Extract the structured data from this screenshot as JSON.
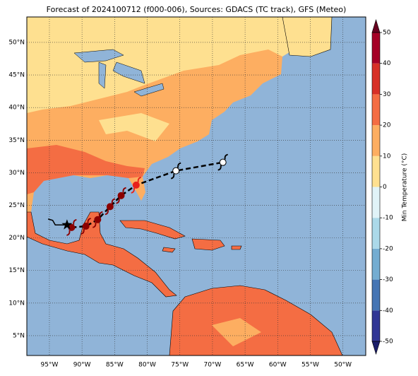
{
  "chart_data": {
    "type": "map",
    "title": "Forecast of 2024100712 (f000-006), Sources: GDACS (TC track), GFS (Meteo)",
    "xlim": [
      -98.46,
      -46.5
    ],
    "ylim": [
      1.96,
      53.9
    ],
    "xticks": [
      {
        "value": -95,
        "label": "95°W"
      },
      {
        "value": -90,
        "label": "90°W"
      },
      {
        "value": -85,
        "label": "85°W"
      },
      {
        "value": -80,
        "label": "80°W"
      },
      {
        "value": -75,
        "label": "75°W"
      },
      {
        "value": -70,
        "label": "70°W"
      },
      {
        "value": -65,
        "label": "65°W"
      },
      {
        "value": -60,
        "label": "60°W"
      },
      {
        "value": -55,
        "label": "55°W"
      },
      {
        "value": -50,
        "label": "50°W"
      }
    ],
    "yticks": [
      {
        "value": 5,
        "label": "5°N"
      },
      {
        "value": 10,
        "label": "10°N"
      },
      {
        "value": 15,
        "label": "15°N"
      },
      {
        "value": 20,
        "label": "20°N"
      },
      {
        "value": 25,
        "label": "25°N"
      },
      {
        "value": 30,
        "label": "30°N"
      },
      {
        "value": 35,
        "label": "35°N"
      },
      {
        "value": 40,
        "label": "40°N"
      },
      {
        "value": 45,
        "label": "45°N"
      },
      {
        "value": 50,
        "label": "50°N"
      }
    ],
    "grid": true,
    "past_track": {
      "lon": [
        -95.2,
        -94.5,
        -94.1,
        -92.3
      ],
      "lat": [
        22.9,
        22.7,
        22.0,
        22.0
      ]
    },
    "current_position": {
      "lon": -92.3,
      "lat": 22.0
    },
    "forecast_track": {
      "lon": [
        -91.6,
        -89.4,
        -87.6,
        -85.7,
        -84.0,
        -81.7,
        -75.6,
        -68.4
      ],
      "lat": [
        21.6,
        21.8,
        22.8,
        24.8,
        26.5,
        28.1,
        30.3,
        31.6
      ],
      "colors": [
        "#8b0000",
        "#8b0000",
        "#8b0000",
        "#8b0000",
        "#8b0000",
        "#e8201a",
        "#ffffff",
        "#ffffff"
      ]
    },
    "colorbar": {
      "label": "Min Temperature (°C)",
      "ticks": [
        -50,
        -40,
        -30,
        -20,
        -10,
        0,
        10,
        20,
        30,
        40,
        50
      ],
      "colors": [
        "#313695",
        "#4575b4",
        "#74add1",
        "#abd9e9",
        "#e0f3f8",
        "#fee090",
        "#fdae61",
        "#f46d43",
        "#d73027",
        "#a50026"
      ],
      "extend_colors": [
        "#1b1e6b",
        "#67001f"
      ]
    }
  }
}
